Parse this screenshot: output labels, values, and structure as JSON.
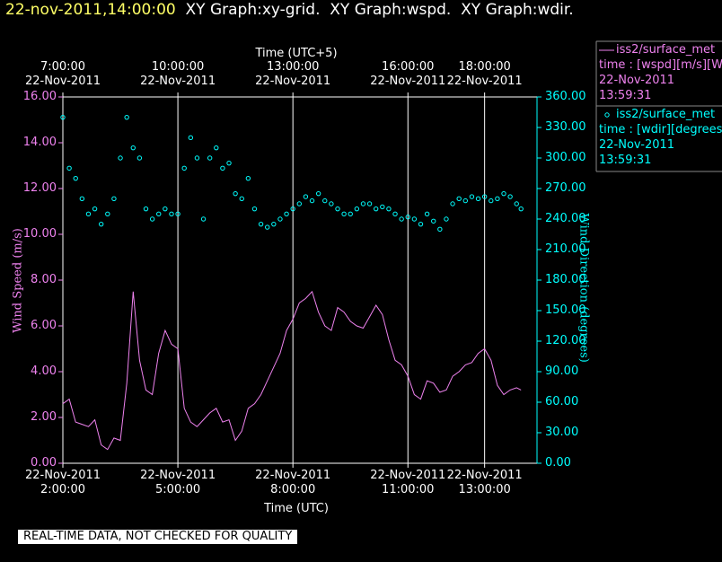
{
  "header": {
    "timestamp": "22-nov-2011,14:00:00",
    "title": "XY Graph:xy-grid.  XY Graph:wspd.  XY Graph:wdir."
  },
  "note": "REAL-TIME DATA, NOT CHECKED FOR QUALITY",
  "chart_data": {
    "type": "line",
    "xlabel": "Time (UTC)",
    "x2label": "Time (UTC+5)",
    "ylabel": "Wind Speed (m/s)",
    "y2label": "Wind Direction (degrees)",
    "grid": true,
    "xlim": [
      "2011-11-22T02:00:00",
      "2011-11-22T14:22:00"
    ],
    "xticks": [
      {
        "value": "2011-11-22T02:00:00",
        "label": "22-Nov-2011\n2:00:00"
      },
      {
        "value": "2011-11-22T05:00:00",
        "label": "22-Nov-2011\n5:00:00"
      },
      {
        "value": "2011-11-22T08:00:00",
        "label": "22-Nov-2011\n8:00:00"
      },
      {
        "value": "2011-11-22T11:00:00",
        "label": "22-Nov-2011\n11:00:00"
      },
      {
        "value": "2011-11-22T13:00:00",
        "label": "22-Nov-2011\n13:00:00"
      }
    ],
    "x2ticks": [
      {
        "value": "2011-11-22T02:00:00",
        "label": "7:00:00\n22-Nov-2011"
      },
      {
        "value": "2011-11-22T05:00:00",
        "label": "10:00:00\n22-Nov-2011"
      },
      {
        "value": "2011-11-22T08:00:00",
        "label": "13:00:00\n22-Nov-2011"
      },
      {
        "value": "2011-11-22T11:00:00",
        "label": "16:00:00\n22-Nov-2011"
      },
      {
        "value": "2011-11-22T13:00:00",
        "label": "18:00:00\n22-Nov-2011"
      }
    ],
    "ylim": [
      0,
      16
    ],
    "yticks": [
      {
        "value": 0,
        "label": "0.00"
      },
      {
        "value": 2,
        "label": "2.00"
      },
      {
        "value": 4,
        "label": "4.00"
      },
      {
        "value": 6,
        "label": "6.00"
      },
      {
        "value": 8,
        "label": "8.00"
      },
      {
        "value": 10,
        "label": "10.00"
      },
      {
        "value": 12,
        "label": "12.00"
      },
      {
        "value": 14,
        "label": "14.00"
      },
      {
        "value": 16,
        "label": "16.00"
      }
    ],
    "y2lim": [
      0,
      360
    ],
    "y2ticks": [
      {
        "value": 0,
        "label": "0.00"
      },
      {
        "value": 30,
        "label": "30.00"
      },
      {
        "value": 60,
        "label": "60.00"
      },
      {
        "value": 90,
        "label": "90.00"
      },
      {
        "value": 120,
        "label": "120.00"
      },
      {
        "value": 150,
        "label": "150.00"
      },
      {
        "value": 180,
        "label": "180.00"
      },
      {
        "value": 210,
        "label": "210.00"
      },
      {
        "value": 240,
        "label": "240.00"
      },
      {
        "value": 270,
        "label": "270.00"
      },
      {
        "value": 300,
        "label": "300.00"
      },
      {
        "value": 330,
        "label": "330.00"
      },
      {
        "value": 360,
        "label": "360.00"
      }
    ],
    "x": [
      "2011-11-22T02:00:00",
      "2011-11-22T02:10:00",
      "2011-11-22T02:20:00",
      "2011-11-22T02:30:00",
      "2011-11-22T02:40:00",
      "2011-11-22T02:50:00",
      "2011-11-22T03:00:00",
      "2011-11-22T03:10:00",
      "2011-11-22T03:20:00",
      "2011-11-22T03:30:00",
      "2011-11-22T03:40:00",
      "2011-11-22T03:50:00",
      "2011-11-22T04:00:00",
      "2011-11-22T04:10:00",
      "2011-11-22T04:20:00",
      "2011-11-22T04:30:00",
      "2011-11-22T04:40:00",
      "2011-11-22T04:50:00",
      "2011-11-22T05:00:00",
      "2011-11-22T05:10:00",
      "2011-11-22T05:20:00",
      "2011-11-22T05:30:00",
      "2011-11-22T05:40:00",
      "2011-11-22T05:50:00",
      "2011-11-22T06:00:00",
      "2011-11-22T06:10:00",
      "2011-11-22T06:20:00",
      "2011-11-22T06:30:00",
      "2011-11-22T06:40:00",
      "2011-11-22T06:50:00",
      "2011-11-22T07:00:00",
      "2011-11-22T07:10:00",
      "2011-11-22T07:20:00",
      "2011-11-22T07:30:00",
      "2011-11-22T07:40:00",
      "2011-11-22T07:50:00",
      "2011-11-22T08:00:00",
      "2011-11-22T08:10:00",
      "2011-11-22T08:20:00",
      "2011-11-22T08:30:00",
      "2011-11-22T08:40:00",
      "2011-11-22T08:50:00",
      "2011-11-22T09:00:00",
      "2011-11-22T09:10:00",
      "2011-11-22T09:20:00",
      "2011-11-22T09:30:00",
      "2011-11-22T09:40:00",
      "2011-11-22T09:50:00",
      "2011-11-22T10:00:00",
      "2011-11-22T10:10:00",
      "2011-11-22T10:20:00",
      "2011-11-22T10:30:00",
      "2011-11-22T10:40:00",
      "2011-11-22T10:50:00",
      "2011-11-22T11:00:00",
      "2011-11-22T11:10:00",
      "2011-11-22T11:20:00",
      "2011-11-22T11:30:00",
      "2011-11-22T11:40:00",
      "2011-11-22T11:50:00",
      "2011-11-22T12:00:00",
      "2011-11-22T12:10:00",
      "2011-11-22T12:20:00",
      "2011-11-22T12:30:00",
      "2011-11-22T12:40:00",
      "2011-11-22T12:50:00",
      "2011-11-22T13:00:00",
      "2011-11-22T13:10:00",
      "2011-11-22T13:20:00",
      "2011-11-22T13:30:00",
      "2011-11-22T13:40:00",
      "2011-11-22T13:50:00",
      "2011-11-22T13:57:00"
    ],
    "series": [
      {
        "name": "iss2/surface_met",
        "legend_lines": [
          "time : [wspd][m/s][Wind",
          "22-Nov-2011",
          "13:59:31"
        ],
        "color": "#ee82ee",
        "style": "line",
        "values": [
          2.6,
          2.8,
          1.8,
          1.7,
          1.6,
          1.9,
          0.8,
          0.6,
          1.1,
          1.0,
          3.5,
          7.5,
          4.5,
          3.2,
          3.0,
          4.8,
          5.8,
          5.2,
          5.0,
          2.4,
          1.8,
          1.6,
          1.9,
          2.2,
          2.4,
          1.8,
          1.9,
          1.0,
          1.4,
          2.4,
          2.6,
          3.0,
          3.6,
          4.2,
          4.8,
          5.8,
          6.3,
          7.0,
          7.2,
          7.5,
          6.6,
          6.0,
          5.8,
          6.8,
          6.6,
          6.2,
          6.0,
          5.9,
          6.4,
          6.9,
          6.5,
          5.4,
          4.5,
          4.3,
          3.8,
          3.0,
          2.8,
          3.6,
          3.5,
          3.1,
          3.2,
          3.8,
          4.0,
          4.3,
          4.4,
          4.8,
          5.0,
          4.5,
          3.4,
          3.0,
          3.2,
          3.3,
          3.2
        ]
      },
      {
        "name": "iss2/surface_met",
        "legend_lines": [
          "time : [wdir][degrees][V",
          "22-Nov-2011",
          "13:59:31"
        ],
        "color": "#00ffff",
        "style": "markers",
        "axis": "y2",
        "values": [
          340,
          290,
          280,
          260,
          245,
          250,
          235,
          245,
          260,
          300,
          340,
          310,
          300,
          250,
          240,
          245,
          250,
          245,
          245,
          290,
          320,
          300,
          240,
          300,
          310,
          290,
          295,
          265,
          260,
          280,
          250,
          235,
          232,
          235,
          240,
          245,
          250,
          255,
          262,
          258,
          265,
          258,
          255,
          250,
          245,
          245,
          250,
          255,
          255,
          250,
          252,
          250,
          245,
          240,
          242,
          240,
          235,
          245,
          238,
          230,
          240,
          255,
          260,
          258,
          262,
          260,
          262,
          258,
          260,
          265,
          262,
          255,
          250
        ]
      }
    ]
  }
}
